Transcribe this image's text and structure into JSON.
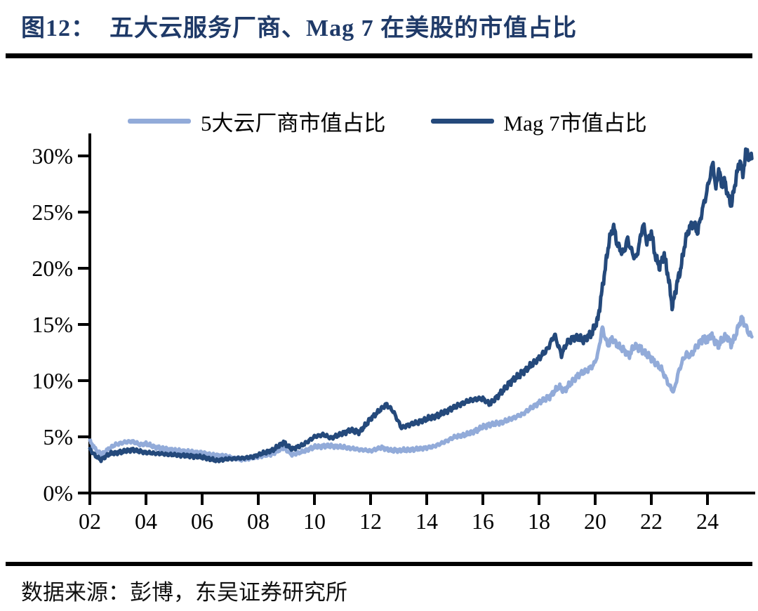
{
  "figure": {
    "label": "图12：",
    "title": "五大云服务厂商、Mag 7 在美股的市值占比",
    "source": "数据来源：彭博，东吴证券研究所",
    "title_color": "#1f3a68"
  },
  "chart_data": {
    "type": "line",
    "title": "五大云服务厂商、Mag 7 在美股的市值占比",
    "unit": "%",
    "grid": false,
    "legend_position": "top",
    "x_axis": {
      "range": [
        2002,
        2025.7
      ],
      "tick_labels": [
        "02",
        "04",
        "06",
        "08",
        "10",
        "12",
        "14",
        "16",
        "18",
        "20",
        "22",
        "24"
      ],
      "tick_years": [
        2002,
        2004,
        2006,
        2008,
        2010,
        2012,
        2014,
        2016,
        2018,
        2020,
        2022,
        2024
      ]
    },
    "y_axis": {
      "range": [
        0,
        32
      ],
      "ticks": [
        0,
        5,
        10,
        15,
        20,
        25,
        30
      ],
      "tick_labels": [
        "0%",
        "5%",
        "10%",
        "15%",
        "20%",
        "25%",
        "30%"
      ]
    },
    "series": [
      {
        "name": "5大云厂商市值占比",
        "color": "#92abd9",
        "points": [
          [
            2002.0,
            4.6
          ],
          [
            2002.2,
            3.9
          ],
          [
            2002.4,
            3.4
          ],
          [
            2002.6,
            3.8
          ],
          [
            2002.9,
            4.3
          ],
          [
            2003.2,
            4.5
          ],
          [
            2003.5,
            4.6
          ],
          [
            2003.8,
            4.3
          ],
          [
            2004.0,
            4.4
          ],
          [
            2004.3,
            4.1
          ],
          [
            2004.7,
            3.9
          ],
          [
            2005.0,
            3.8
          ],
          [
            2005.5,
            3.7
          ],
          [
            2006.0,
            3.6
          ],
          [
            2006.4,
            3.4
          ],
          [
            2006.8,
            3.3
          ],
          [
            2007.1,
            3.1
          ],
          [
            2007.4,
            3.0
          ],
          [
            2007.8,
            3.15
          ],
          [
            2008.1,
            3.3
          ],
          [
            2008.5,
            3.45
          ],
          [
            2008.9,
            4.0
          ],
          [
            2009.2,
            3.4
          ],
          [
            2009.6,
            3.7
          ],
          [
            2010.0,
            4.1
          ],
          [
            2010.5,
            4.2
          ],
          [
            2011.0,
            4.1
          ],
          [
            2011.5,
            3.9
          ],
          [
            2012.0,
            3.75
          ],
          [
            2012.4,
            4.05
          ],
          [
            2012.7,
            3.8
          ],
          [
            2013.0,
            3.8
          ],
          [
            2013.4,
            3.85
          ],
          [
            2013.8,
            3.95
          ],
          [
            2014.2,
            4.1
          ],
          [
            2014.6,
            4.5
          ],
          [
            2015.0,
            5.0
          ],
          [
            2015.4,
            5.2
          ],
          [
            2015.8,
            5.6
          ],
          [
            2016.0,
            5.9
          ],
          [
            2016.3,
            6.1
          ],
          [
            2016.7,
            6.3
          ],
          [
            2017.0,
            6.6
          ],
          [
            2017.4,
            7.0
          ],
          [
            2017.8,
            7.7
          ],
          [
            2018.1,
            8.2
          ],
          [
            2018.4,
            8.6
          ],
          [
            2018.7,
            9.5
          ],
          [
            2018.9,
            9.1
          ],
          [
            2019.1,
            9.7
          ],
          [
            2019.4,
            10.5
          ],
          [
            2019.7,
            10.9
          ],
          [
            2019.95,
            11.4
          ],
          [
            2020.1,
            12.4
          ],
          [
            2020.25,
            14.7
          ],
          [
            2020.45,
            13.1
          ],
          [
            2020.6,
            13.8
          ],
          [
            2020.8,
            13.1
          ],
          [
            2021.0,
            12.8
          ],
          [
            2021.2,
            12.2
          ],
          [
            2021.4,
            13.1
          ],
          [
            2021.6,
            12.9
          ],
          [
            2021.8,
            12.4
          ],
          [
            2022.0,
            12.0
          ],
          [
            2022.2,
            11.4
          ],
          [
            2022.35,
            11.1
          ],
          [
            2022.5,
            10.3
          ],
          [
            2022.65,
            9.5
          ],
          [
            2022.8,
            9.0
          ],
          [
            2022.95,
            10.6
          ],
          [
            2023.1,
            11.7
          ],
          [
            2023.25,
            12.4
          ],
          [
            2023.4,
            12.2
          ],
          [
            2023.55,
            12.8
          ],
          [
            2023.7,
            13.3
          ],
          [
            2023.85,
            13.8
          ],
          [
            2024.0,
            13.5
          ],
          [
            2024.1,
            14.1
          ],
          [
            2024.25,
            13.6
          ],
          [
            2024.4,
            13.1
          ],
          [
            2024.55,
            13.8
          ],
          [
            2024.7,
            13.9
          ],
          [
            2024.85,
            13.2
          ],
          [
            2025.0,
            14.0
          ],
          [
            2025.15,
            15.2
          ],
          [
            2025.22,
            15.6
          ],
          [
            2025.35,
            14.9
          ],
          [
            2025.45,
            14.3
          ],
          [
            2025.58,
            13.9
          ]
        ]
      },
      {
        "name": "Mag 7市值占比",
        "color": "#24497b",
        "points": [
          [
            2002.0,
            3.9
          ],
          [
            2002.2,
            3.3
          ],
          [
            2002.4,
            2.95
          ],
          [
            2002.7,
            3.5
          ],
          [
            2003.0,
            3.6
          ],
          [
            2003.5,
            3.85
          ],
          [
            2004.0,
            3.6
          ],
          [
            2004.5,
            3.5
          ],
          [
            2005.0,
            3.4
          ],
          [
            2005.5,
            3.3
          ],
          [
            2006.0,
            3.2
          ],
          [
            2006.5,
            2.9
          ],
          [
            2007.0,
            3.05
          ],
          [
            2007.4,
            3.1
          ],
          [
            2007.8,
            3.2
          ],
          [
            2008.1,
            3.5
          ],
          [
            2008.5,
            3.8
          ],
          [
            2008.9,
            4.5
          ],
          [
            2009.2,
            3.9
          ],
          [
            2009.6,
            4.3
          ],
          [
            2010.0,
            5.0
          ],
          [
            2010.3,
            5.2
          ],
          [
            2010.6,
            4.9
          ],
          [
            2011.0,
            5.3
          ],
          [
            2011.3,
            5.6
          ],
          [
            2011.6,
            5.4
          ],
          [
            2012.0,
            6.6
          ],
          [
            2012.3,
            7.3
          ],
          [
            2012.55,
            7.9
          ],
          [
            2012.8,
            7.3
          ],
          [
            2013.1,
            5.8
          ],
          [
            2013.4,
            6.1
          ],
          [
            2013.7,
            6.3
          ],
          [
            2014.0,
            6.6
          ],
          [
            2014.4,
            6.9
          ],
          [
            2014.8,
            7.4
          ],
          [
            2015.2,
            7.9
          ],
          [
            2015.6,
            8.3
          ],
          [
            2016.0,
            8.4
          ],
          [
            2016.25,
            7.9
          ],
          [
            2016.6,
            8.8
          ],
          [
            2017.0,
            9.9
          ],
          [
            2017.5,
            10.9
          ],
          [
            2018.0,
            12.0
          ],
          [
            2018.3,
            12.8
          ],
          [
            2018.55,
            14.1
          ],
          [
            2018.8,
            12.3
          ],
          [
            2019.0,
            13.4
          ],
          [
            2019.3,
            13.9
          ],
          [
            2019.6,
            13.6
          ],
          [
            2019.9,
            14.3
          ],
          [
            2020.1,
            15.5
          ],
          [
            2020.3,
            19.0
          ],
          [
            2020.5,
            22.5
          ],
          [
            2020.65,
            23.8
          ],
          [
            2020.8,
            22.0
          ],
          [
            2021.0,
            21.3
          ],
          [
            2021.15,
            22.6
          ],
          [
            2021.3,
            21.5
          ],
          [
            2021.45,
            20.8
          ],
          [
            2021.6,
            22.5
          ],
          [
            2021.7,
            24.0
          ],
          [
            2021.85,
            22.3
          ],
          [
            2022.0,
            23.2
          ],
          [
            2022.15,
            21.0
          ],
          [
            2022.3,
            20.1
          ],
          [
            2022.45,
            21.3
          ],
          [
            2022.6,
            19.3
          ],
          [
            2022.75,
            16.5
          ],
          [
            2022.9,
            18.5
          ],
          [
            2023.05,
            20.0
          ],
          [
            2023.2,
            22.3
          ],
          [
            2023.35,
            23.6
          ],
          [
            2023.5,
            24.0
          ],
          [
            2023.65,
            23.2
          ],
          [
            2023.8,
            25.0
          ],
          [
            2023.95,
            26.5
          ],
          [
            2024.1,
            28.3
          ],
          [
            2024.2,
            29.4
          ],
          [
            2024.3,
            26.9
          ],
          [
            2024.4,
            29.0
          ],
          [
            2024.5,
            27.3
          ],
          [
            2024.6,
            27.9
          ],
          [
            2024.75,
            26.3
          ],
          [
            2024.85,
            25.6
          ],
          [
            2025.0,
            27.8
          ],
          [
            2025.1,
            29.0
          ],
          [
            2025.17,
            29.5
          ],
          [
            2025.25,
            28.3
          ],
          [
            2025.4,
            30.7
          ],
          [
            2025.5,
            29.6
          ],
          [
            2025.58,
            30.2
          ]
        ]
      }
    ]
  }
}
